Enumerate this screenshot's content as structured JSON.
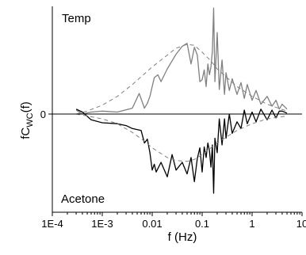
{
  "chart_data": {
    "type": "line",
    "title": "",
    "xlabel": "f (Hz)",
    "ylabel_main": "fC",
    "ylabel_sub": "WC",
    "ylabel_tail": "(f)",
    "x_scale": "log",
    "xlim": [
      0.0001,
      10
    ],
    "ylim": [
      -1,
      1
    ],
    "x_tick_values": [
      0.0001,
      0.001,
      0.01,
      0.1,
      1,
      10
    ],
    "x_tick_labels": [
      "1E-4",
      "1E-3",
      "0.01",
      "0.1",
      "1",
      "10"
    ],
    "y_tick_values": [
      0
    ],
    "y_tick_labels": [
      "0"
    ],
    "grid": false,
    "legend": "none",
    "annotations": [
      {
        "text": "Temp",
        "position": "top-left"
      },
      {
        "text": "Acetone",
        "position": "bottom-left"
      }
    ],
    "series": [
      {
        "color": "#808080",
        "style": "solid",
        "x": [
          0.0003,
          0.0004,
          0.0006,
          0.001,
          0.002,
          0.004,
          0.0055,
          0.007,
          0.008,
          0.009,
          0.011,
          0.013,
          0.015,
          0.02,
          0.03,
          0.04,
          0.05,
          0.06,
          0.07,
          0.08,
          0.09,
          0.1,
          0.11,
          0.12,
          0.13,
          0.14,
          0.15,
          0.16,
          0.17,
          0.18,
          0.2,
          0.22,
          0.25,
          0.28,
          0.3,
          0.35,
          0.4,
          0.5,
          0.6,
          0.7,
          0.8,
          1,
          1.2,
          1.5,
          2,
          2.5,
          3,
          3.5,
          4,
          5
        ],
        "y": [
          0.04,
          0.0,
          0.02,
          0.03,
          0.02,
          0.06,
          0.21,
          0.06,
          0.11,
          0.18,
          0.37,
          0.4,
          0.33,
          0.46,
          0.61,
          0.69,
          0.72,
          0.51,
          0.68,
          0.6,
          0.33,
          0.35,
          0.45,
          0.28,
          0.51,
          0.4,
          0.48,
          0.64,
          1.08,
          0.33,
          0.83,
          0.25,
          0.55,
          0.2,
          0.42,
          0.24,
          0.36,
          0.2,
          0.32,
          0.16,
          0.3,
          0.14,
          0.24,
          0.1,
          0.18,
          0.08,
          0.14,
          0.05,
          0.1,
          0.05
        ]
      },
      {
        "color": "#808080",
        "style": "dashed",
        "x": [
          0.0003,
          0.0005,
          0.001,
          0.002,
          0.004,
          0.007,
          0.01,
          0.02,
          0.03,
          0.05,
          0.07,
          0.1,
          0.15,
          0.2,
          0.3,
          0.5,
          1,
          2,
          5
        ],
        "y": [
          0.0,
          0.03,
          0.09,
          0.18,
          0.3,
          0.41,
          0.48,
          0.6,
          0.67,
          0.71,
          0.7,
          0.63,
          0.54,
          0.46,
          0.38,
          0.28,
          0.18,
          0.1,
          0.03
        ]
      },
      {
        "color": "#000000",
        "style": "solid",
        "x": [
          0.0003,
          0.0004,
          0.0006,
          0.001,
          0.002,
          0.003,
          0.004,
          0.006,
          0.007,
          0.008,
          0.009,
          0.01,
          0.011,
          0.012,
          0.015,
          0.02,
          0.025,
          0.03,
          0.04,
          0.05,
          0.06,
          0.07,
          0.08,
          0.09,
          0.1,
          0.11,
          0.12,
          0.13,
          0.14,
          0.15,
          0.16,
          0.17,
          0.18,
          0.2,
          0.22,
          0.25,
          0.28,
          0.3,
          0.35,
          0.4,
          0.5,
          0.6,
          0.7,
          0.8,
          1,
          1.2,
          1.5,
          2,
          2.5,
          3,
          3.5,
          4,
          5
        ],
        "y": [
          0.05,
          0.02,
          -0.06,
          -0.09,
          -0.1,
          -0.12,
          -0.15,
          -0.17,
          -0.3,
          -0.26,
          -0.4,
          -0.58,
          -0.52,
          -0.6,
          -0.5,
          -0.65,
          -0.42,
          -0.58,
          -0.5,
          -0.62,
          -0.45,
          -0.7,
          -0.46,
          -0.35,
          -0.6,
          -0.34,
          -0.45,
          -0.3,
          -0.38,
          -0.55,
          -0.32,
          -0.82,
          -0.25,
          -0.4,
          -0.05,
          -0.32,
          -0.05,
          -0.25,
          0.0,
          -0.2,
          -0.08,
          -0.15,
          0.04,
          -0.1,
          0.02,
          -0.08,
          0.05,
          -0.06,
          0.04,
          -0.04,
          0.03,
          0.03,
          0.01
        ]
      },
      {
        "color": "#808080",
        "style": "dashed",
        "x": [
          0.0003,
          0.0005,
          0.001,
          0.002,
          0.004,
          0.007,
          0.01,
          0.02,
          0.03,
          0.05,
          0.07,
          0.1,
          0.15,
          0.2,
          0.3,
          0.5,
          1,
          2,
          5
        ],
        "y": [
          0.0,
          -0.02,
          -0.05,
          -0.1,
          -0.19,
          -0.28,
          -0.35,
          -0.45,
          -0.48,
          -0.49,
          -0.47,
          -0.42,
          -0.35,
          -0.3,
          -0.24,
          -0.17,
          -0.1,
          -0.05,
          -0.02
        ]
      }
    ]
  }
}
